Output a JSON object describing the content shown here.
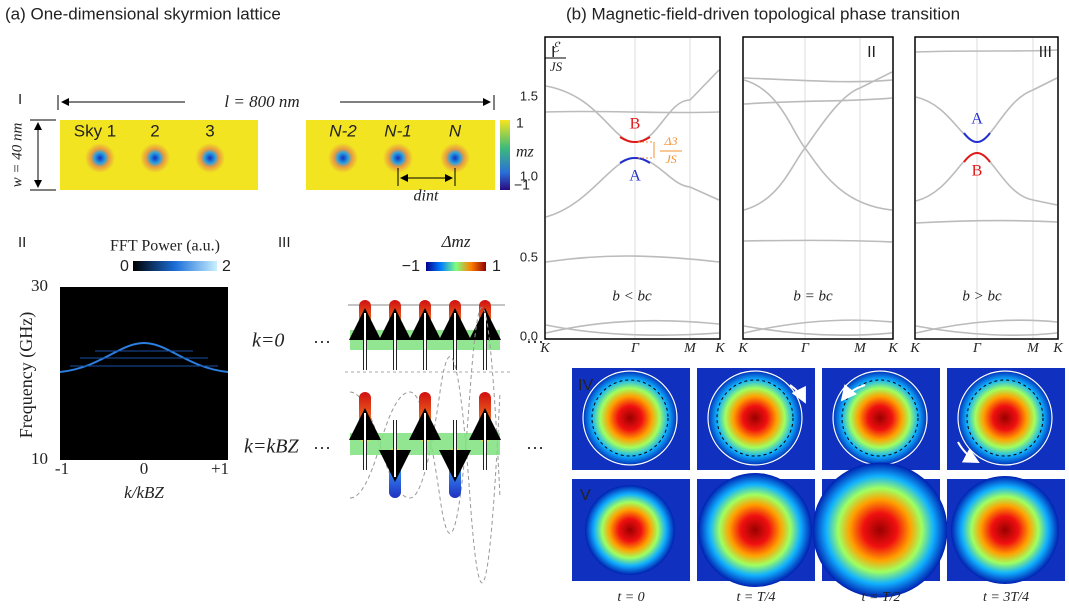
{
  "panel_a": {
    "title": "(a) One-dimensional skyrmion lattice",
    "section_I": {
      "label": "I",
      "length": "l = 800 nm",
      "width": "w = 40 nm",
      "skyrmions": [
        "Sky 1",
        "2",
        "3",
        "N-2",
        "N-1",
        "N"
      ],
      "spacing": "dint",
      "colorbar": {
        "label": "mz",
        "max": "1",
        "min": "−1"
      }
    },
    "section_II": {
      "label": "II",
      "colorbar": {
        "title": "FFT Power (a.u.)",
        "min": "0",
        "max": "2"
      },
      "y_label": "Frequency (GHz)",
      "y_ticks": [
        "30",
        "10"
      ],
      "x_ticks": [
        "-1",
        "0",
        "+1"
      ],
      "x_label": "k/kBZ"
    },
    "section_III": {
      "label": "III",
      "colorbar": {
        "title": "Δmz",
        "min": "−1",
        "max": "1"
      },
      "rows": [
        "k=0",
        "k=kBZ"
      ],
      "ellipsis": "···"
    }
  },
  "panel_b": {
    "title": "(b) Magnetic-field-driven topological phase transition",
    "y_label": {
      "numerator": "ℰ",
      "denominator": "JS"
    },
    "y_ticks": [
      "0.0",
      "0.5",
      "1.0",
      "1.5"
    ],
    "x_ticks": [
      "K",
      "Γ",
      "M",
      "K"
    ],
    "gap_label": {
      "numerator": "Δ3",
      "denominator": "JS"
    },
    "plots": [
      {
        "label": "I",
        "condition": "b < bc",
        "upper": "B",
        "lower": "A"
      },
      {
        "label": "II",
        "condition": "b = bc"
      },
      {
        "label": "III",
        "condition": "b > bc",
        "upper": "A",
        "lower": "B"
      }
    ],
    "row_labels": [
      "IV",
      "V"
    ],
    "times": [
      "t = 0",
      "t = T/4",
      "t = T/2",
      "t = 3T/4"
    ]
  }
}
